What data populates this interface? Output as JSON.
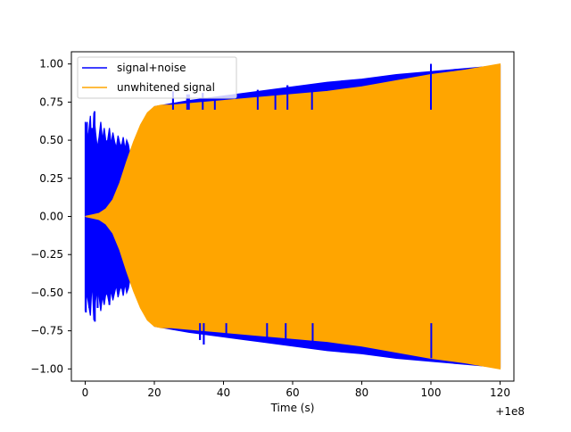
{
  "chart_data": {
    "type": "line",
    "title": "",
    "xlabel": "Time (s)",
    "ylabel": "",
    "x_offset_label": "+1e8",
    "xlim": [
      -4,
      124
    ],
    "ylim": [
      -1.08,
      1.08
    ],
    "x_ticks": [
      0,
      20,
      40,
      60,
      80,
      100,
      120
    ],
    "x_tick_labels": [
      "0",
      "20",
      "40",
      "60",
      "80",
      "100",
      "120"
    ],
    "y_ticks": [
      1.0,
      0.75,
      0.5,
      0.25,
      0.0,
      -0.25,
      -0.5,
      -0.75,
      -1.0
    ],
    "y_tick_labels": [
      "1.00",
      "0.75",
      "0.50",
      "0.25",
      "0.00",
      "−0.25",
      "−0.50",
      "−0.75",
      "−1.00"
    ],
    "grid": false,
    "legend_position": "top-left",
    "colors": {
      "signal_noise": "#0000ff",
      "unwhitened": "#ffa500"
    },
    "series": [
      {
        "name": "signal+noise",
        "color": "#0000ff",
        "envelope": {
          "x": [
            0,
            0.5,
            1,
            1.5,
            2,
            2.5,
            3,
            3.5,
            4,
            4.5,
            5,
            5.5,
            6,
            6.5,
            7,
            7.5,
            8,
            8.5,
            9,
            9.5,
            10,
            10.5,
            11,
            11.5,
            12,
            12.5,
            13,
            14,
            16,
            18,
            20,
            25,
            30,
            40,
            50,
            60,
            70,
            80,
            90,
            100,
            110,
            120
          ],
          "upper": [
            0.62,
            0.5,
            0.55,
            0.66,
            0.38,
            0.68,
            0.55,
            0.45,
            0.52,
            0.62,
            0.5,
            0.58,
            0.49,
            0.5,
            0.58,
            0.47,
            0.55,
            0.49,
            0.45,
            0.53,
            0.48,
            0.46,
            0.52,
            0.44,
            0.5,
            0.47,
            0.4,
            0.43,
            0.52,
            0.62,
            0.72,
            0.74,
            0.76,
            0.79,
            0.82,
            0.85,
            0.88,
            0.9,
            0.93,
            0.95,
            0.97,
            0.99
          ],
          "lower": [
            -0.62,
            -0.5,
            -0.58,
            -0.65,
            -0.42,
            -0.68,
            -0.55,
            -0.47,
            -0.52,
            -0.62,
            -0.52,
            -0.58,
            -0.5,
            -0.52,
            -0.58,
            -0.48,
            -0.55,
            -0.5,
            -0.45,
            -0.53,
            -0.48,
            -0.46,
            -0.52,
            -0.44,
            -0.5,
            -0.47,
            -0.4,
            -0.43,
            -0.52,
            -0.62,
            -0.72,
            -0.74,
            -0.76,
            -0.79,
            -0.82,
            -0.85,
            -0.88,
            -0.9,
            -0.93,
            -0.95,
            -0.97,
            -0.99
          ]
        },
        "spikes": [
          {
            "x": 0.2,
            "y": -0.63
          },
          {
            "x": 0.5,
            "y": 0.62
          },
          {
            "x": 1.2,
            "y": -0.6
          },
          {
            "x": 2.0,
            "y": 0.58
          },
          {
            "x": 2.7,
            "y": 0.69
          },
          {
            "x": 2.8,
            "y": -0.69
          },
          {
            "x": 3.6,
            "y": -0.6
          },
          {
            "x": 7.0,
            "y": -0.58
          },
          {
            "x": 20.5,
            "y": -0.68
          },
          {
            "x": 25.4,
            "y": 0.82
          },
          {
            "x": 29.5,
            "y": 0.8
          },
          {
            "x": 30.0,
            "y": 0.8
          },
          {
            "x": 33.2,
            "y": -0.81
          },
          {
            "x": 34.0,
            "y": 0.81
          },
          {
            "x": 34.3,
            "y": -0.84
          },
          {
            "x": 37.5,
            "y": 0.78
          },
          {
            "x": 40.8,
            "y": -0.78
          },
          {
            "x": 49.9,
            "y": 0.83
          },
          {
            "x": 52.6,
            "y": -0.82
          },
          {
            "x": 55.0,
            "y": 0.8
          },
          {
            "x": 58.0,
            "y": -0.83
          },
          {
            "x": 58.5,
            "y": 0.86
          },
          {
            "x": 65.6,
            "y": 0.85
          },
          {
            "x": 65.8,
            "y": -0.84
          },
          {
            "x": 100.0,
            "y": 1.0
          },
          {
            "x": 100.1,
            "y": -0.93
          }
        ]
      },
      {
        "name": "unwhitened signal",
        "color": "#ffa500",
        "envelope": {
          "x": [
            0,
            2,
            4,
            6,
            8,
            10,
            12,
            14,
            16,
            18,
            19,
            20,
            22,
            25,
            30,
            40,
            50,
            60,
            70,
            80,
            90,
            100,
            110,
            120
          ],
          "upper": [
            0.0,
            0.01,
            0.02,
            0.05,
            0.11,
            0.22,
            0.36,
            0.49,
            0.6,
            0.68,
            0.7,
            0.72,
            0.73,
            0.73,
            0.74,
            0.76,
            0.78,
            0.8,
            0.82,
            0.85,
            0.89,
            0.93,
            0.96,
            1.0
          ],
          "lower": [
            0.0,
            -0.01,
            -0.02,
            -0.05,
            -0.11,
            -0.22,
            -0.36,
            -0.49,
            -0.6,
            -0.68,
            -0.7,
            -0.72,
            -0.73,
            -0.73,
            -0.74,
            -0.76,
            -0.78,
            -0.8,
            -0.82,
            -0.85,
            -0.89,
            -0.93,
            -0.96,
            -1.0
          ]
        }
      }
    ]
  }
}
